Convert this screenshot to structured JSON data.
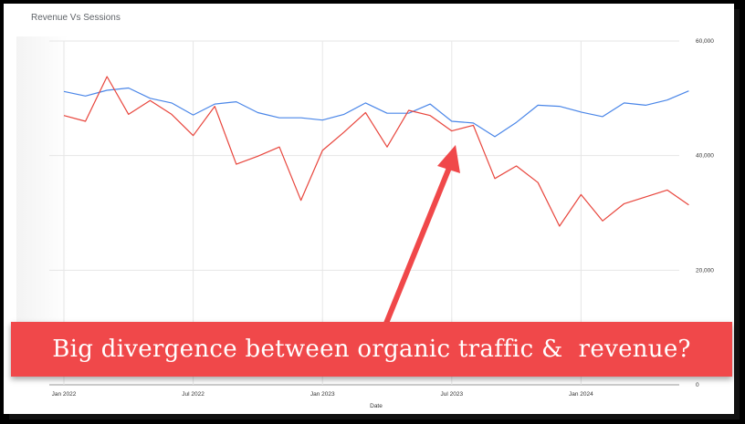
{
  "chart_data": {
    "type": "line",
    "title": "Revenue Vs Sessions",
    "xlabel": "Date",
    "ylabel": "",
    "x_ticks": [
      "Jan 2022",
      "Jul 2022",
      "Jan 2023",
      "Jul 2023",
      "Jan 2024"
    ],
    "y_ticks": [
      "0",
      "20,000",
      "40,000",
      "60,000"
    ],
    "ylim": [
      0,
      60000
    ],
    "x": [
      "2022-01",
      "2022-02",
      "2022-03",
      "2022-04",
      "2022-05",
      "2022-06",
      "2022-07",
      "2022-08",
      "2022-09",
      "2022-10",
      "2022-11",
      "2022-12",
      "2023-01",
      "2023-02",
      "2023-03",
      "2023-04",
      "2023-05",
      "2023-06",
      "2023-07",
      "2023-08",
      "2023-09",
      "2023-10",
      "2023-11",
      "2023-12",
      "2024-01",
      "2024-02",
      "2024-03",
      "2024-04",
      "2024-05",
      "2024-06",
      "2024-07"
    ],
    "series": [
      {
        "color": "#4a86e8",
        "values": [
          51200,
          50400,
          51400,
          51800,
          50000,
          49200,
          47100,
          49000,
          49400,
          47500,
          46600,
          46600,
          46200,
          47200,
          49200,
          47400,
          47400,
          49000,
          46000,
          45700,
          43300,
          45800,
          48800,
          48600,
          47600,
          46800,
          49200,
          48800,
          49700,
          51300,
          null
        ]
      },
      {
        "color": "#e8453c",
        "values": [
          47000,
          46000,
          53800,
          47200,
          49600,
          47200,
          43500,
          48600,
          38500,
          39900,
          41500,
          32200,
          40900,
          44100,
          47500,
          41500,
          47900,
          47000,
          44300,
          45300,
          36000,
          38200,
          35300,
          27700,
          33200,
          28600,
          31600,
          32800,
          34000,
          31400,
          null
        ]
      }
    ],
    "grid": true,
    "legend": "none"
  },
  "banner": {
    "text": "Big divergence between organic traffic &  revenue?"
  },
  "colors": {
    "banner": "#f0484a",
    "arrow": "#f0484a"
  }
}
